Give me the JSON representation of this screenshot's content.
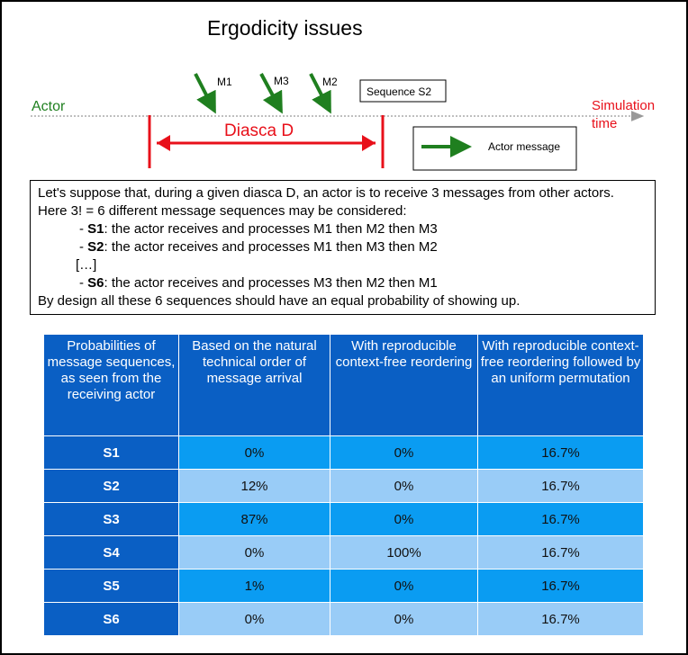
{
  "title": "Ergodicity issues",
  "diagram": {
    "actor_label": "Actor",
    "sim_time_label_1": "Simulation",
    "sim_time_label_2": "time",
    "diasca_label": "Diasca D",
    "messages": [
      "M1",
      "M3",
      "M2"
    ],
    "sequence_label": "Sequence S2",
    "legend_label": "Actor message",
    "colors": {
      "green": "#1f7f1f",
      "red": "#e8101a",
      "grey": "#999999"
    }
  },
  "explanation": {
    "line1": "Let's suppose that, during a given diasca D, an actor is to receive 3 messages from other actors.",
    "line2": "Here 3! = 6 different message sequences may be considered:",
    "s1_key": "S1",
    "s1_text": ": the actor receives and processes M1 then M2 then M3",
    "s2_key": "S2",
    "s2_text": ": the actor receives and processes M1 then M3 then M2",
    "ellipsis": "[…]",
    "s6_key": "S6",
    "s6_text": ": the actor receives and processes M3 then M2 then M1",
    "last": "By design all these 6 sequences should have an equal probability of showing up."
  },
  "table": {
    "headers": [
      "Probabilities of message sequences, as seen from the receiving actor",
      "Based on the natural technical order of message arrival",
      "With reproducible context-free reordering",
      "With reproducible context-free reordering followed by an uniform permutation"
    ],
    "rows": [
      {
        "label": "S1",
        "natural": "0%",
        "reordering": "0%",
        "permutation": "16.7%"
      },
      {
        "label": "S2",
        "natural": "12%",
        "reordering": "0%",
        "permutation": "16.7%"
      },
      {
        "label": "S3",
        "natural": "87%",
        "reordering": "0%",
        "permutation": "16.7%"
      },
      {
        "label": "S4",
        "natural": "0%",
        "reordering": "100%",
        "permutation": "16.7%"
      },
      {
        "label": "S5",
        "natural": "1%",
        "reordering": "0%",
        "permutation": "16.7%"
      },
      {
        "label": "S6",
        "natural": "0%",
        "reordering": "0%",
        "permutation": "16.7%"
      }
    ],
    "colors": {
      "header": "#0a5fc4",
      "odd": "#0a9cf2",
      "even": "#99ccf7"
    }
  }
}
